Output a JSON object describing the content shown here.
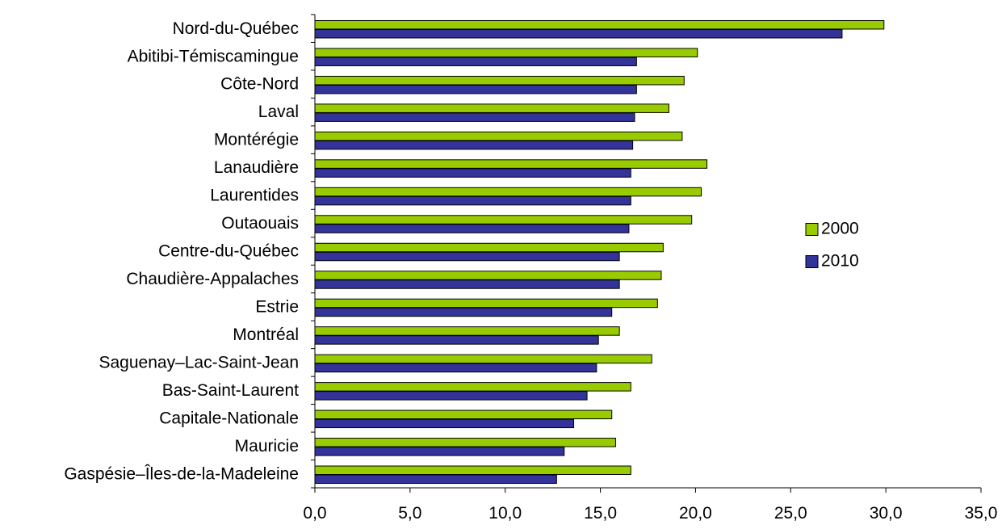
{
  "colors": {
    "series_2000": "#99CC00",
    "series_2010": "#333399"
  },
  "chart_data": {
    "type": "bar",
    "orientation": "horizontal",
    "title": "",
    "xlabel": "",
    "ylabel": "",
    "xlim": [
      0,
      35
    ],
    "x_ticks": [
      "0,0",
      "5,0",
      "10,0",
      "15,0",
      "20,0",
      "25,0",
      "30,0",
      "35,0"
    ],
    "grid": false,
    "legend_position": "right",
    "categories": [
      "Nord-du-Québec",
      "Abitibi-Témiscamingue",
      "Côte-Nord",
      "Laval",
      "Montérégie",
      "Lanaudière",
      "Laurentides",
      "Outaouais",
      "Centre-du-Québec",
      "Chaudière-Appalaches",
      "Estrie",
      "Montréal",
      "Saguenay–Lac-Saint-Jean",
      "Bas-Saint-Laurent",
      "Capitale-Nationale",
      "Mauricie",
      "Gaspésie–Îles-de-la-Madeleine"
    ],
    "series": [
      {
        "name": "2000",
        "values": [
          29.9,
          20.1,
          19.4,
          18.6,
          19.3,
          20.6,
          20.3,
          19.8,
          18.3,
          18.2,
          18.0,
          16.0,
          17.7,
          16.6,
          15.6,
          15.8,
          16.6
        ]
      },
      {
        "name": "2010",
        "values": [
          27.7,
          16.9,
          16.9,
          16.8,
          16.7,
          16.6,
          16.6,
          16.5,
          16.0,
          16.0,
          15.6,
          14.9,
          14.8,
          14.3,
          13.6,
          13.1,
          12.7
        ]
      }
    ]
  }
}
